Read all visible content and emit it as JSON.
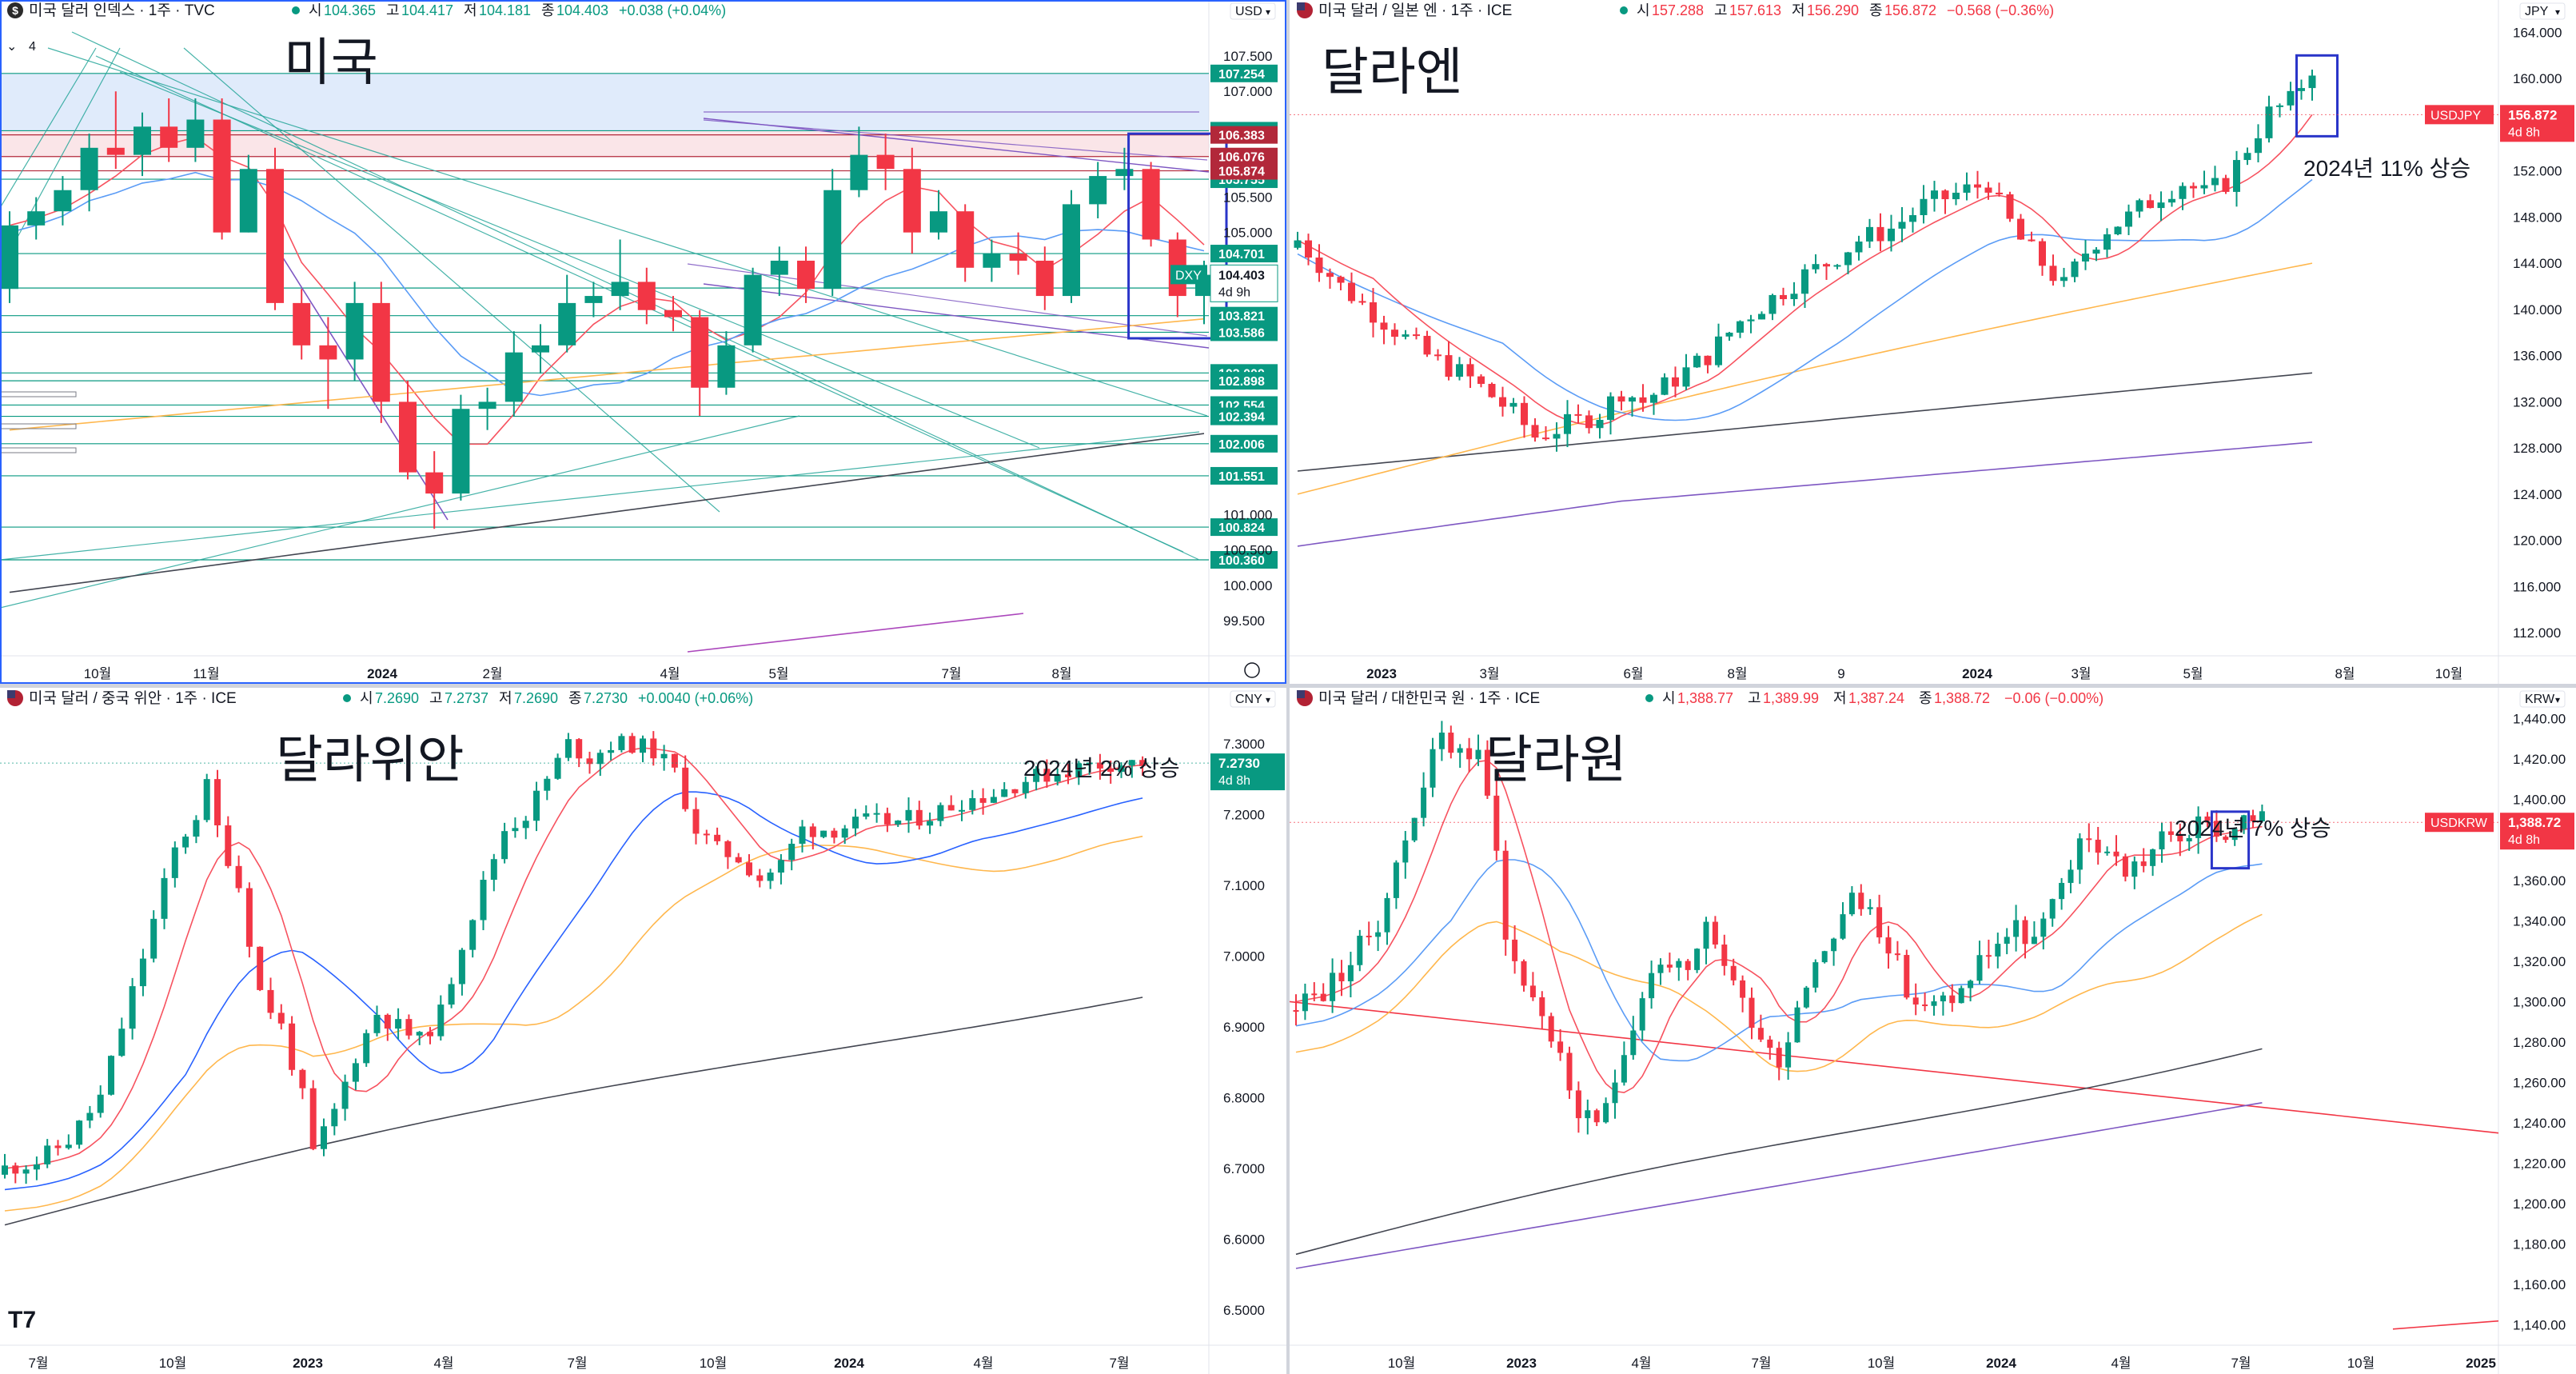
{
  "panels": [
    {
      "id": "dxy",
      "header": {
        "symbol": "미국 달러 인덱스 · 1주 · TVC",
        "icon": "dollar-circle-icon",
        "o_label": "시",
        "o": "104.365",
        "h_label": "고",
        "h": "104.417",
        "l_label": "저",
        "l": "104.181",
        "c_label": "종",
        "c": "104.403",
        "change": "+0.038 (+0.04%)",
        "change_color": "#089981",
        "interval_badge": "4",
        "currency": "USD"
      },
      "big_label": "미국",
      "annotation": "",
      "badge": {
        "symbol": "DXY",
        "price": "104.403",
        "countdown": "4d 9h"
      },
      "level_labels_green": [
        "107.254",
        "106.442",
        "105.755",
        "104.701",
        "104.213",
        "103.821",
        "103.586",
        "103.009",
        "102.898",
        "102.554",
        "102.394",
        "102.006",
        "101.551",
        "100.824",
        "100.360"
      ],
      "level_labels_red": [
        "106.383",
        "106.076",
        "105.874"
      ],
      "price_ticks": [
        "107.500",
        "107.000",
        "105.500",
        "105.000",
        "101.000",
        "100.500",
        "100.000",
        "99.500"
      ],
      "time_ticks": [
        "10월",
        "11월",
        "2024",
        "2월",
        "4월",
        "5월",
        "7월",
        "8월"
      ]
    },
    {
      "id": "usdjpy",
      "header": {
        "symbol": "미국 달러 / 일본 엔 · 1주 · ICE",
        "icon": "us-flag-icon",
        "o_label": "시",
        "o": "157.288",
        "h_label": "고",
        "h": "157.613",
        "l_label": "저",
        "l": "156.290",
        "c_label": "종",
        "c": "156.872",
        "change": "−0.568 (−0.36%)",
        "change_color": "#f23645",
        "currency": "JPY"
      },
      "big_label": "달라엔",
      "annotation": "2024년 11% 상승",
      "badge": {
        "symbol": "USDJPY",
        "price": "156.872",
        "countdown": "4d 8h"
      },
      "price_ticks": [
        "164.000",
        "160.000",
        "156.000",
        "152.000",
        "148.000",
        "144.000",
        "140.000",
        "136.000",
        "132.000",
        "128.000",
        "124.000",
        "120.000",
        "116.000",
        "112.000"
      ],
      "time_ticks": [
        "2023",
        "3월",
        "6월",
        "8월",
        "9",
        "2024",
        "3월",
        "5월",
        "8월",
        "10월"
      ]
    },
    {
      "id": "usdcny",
      "header": {
        "symbol": "미국 달러 / 중국 위안 · 1주 · ICE",
        "icon": "us-flag-icon",
        "o_label": "시",
        "o": "7.2690",
        "h_label": "고",
        "h": "7.2737",
        "l_label": "저",
        "l": "7.2690",
        "c_label": "종",
        "c": "7.2730",
        "change": "+0.0040 (+0.06%)",
        "change_color": "#089981",
        "currency": "CNY"
      },
      "big_label": "달라위안",
      "annotation": "2024년 2% 상승",
      "badge": {
        "symbol": "",
        "price": "7.2730",
        "countdown": "4d 8h"
      },
      "price_ticks": [
        "7.3000",
        "7.2000",
        "7.1000",
        "7.0000",
        "6.9000",
        "6.8000",
        "6.7000",
        "6.6000",
        "6.5000"
      ],
      "time_ticks": [
        "7월",
        "10월",
        "2023",
        "4월",
        "7월",
        "10월",
        "2024",
        "4월",
        "7월"
      ]
    },
    {
      "id": "usdkrw",
      "header": {
        "symbol": "미국 달러 / 대한민국 원 · 1주 · ICE",
        "icon": "us-flag-icon",
        "o_label": "시",
        "o": "1,388.77",
        "h_label": "고",
        "h": "1,389.99",
        "l_label": "저",
        "l": "1,387.24",
        "c_label": "종",
        "c": "1,388.72",
        "change": "−0.06 (−0.00%)",
        "change_color": "#f23645",
        "currency": "KRW"
      },
      "big_label": "달라원",
      "annotation": "2024년 7% 상승",
      "badge": {
        "symbol": "USDKRW",
        "price": "1,388.72",
        "countdown": "4d 8h"
      },
      "price_ticks": [
        "1,440.00",
        "1,420.00",
        "1,400.00",
        "1,380.00",
        "1,360.00",
        "1,340.00",
        "1,320.00",
        "1,300.00",
        "1,280.00",
        "1,260.00",
        "1,240.00",
        "1,220.00",
        "1,200.00",
        "1,180.00",
        "1,160.00",
        "1,140.00"
      ],
      "time_ticks": [
        "10월",
        "2023",
        "4월",
        "7월",
        "10월",
        "2024",
        "4월",
        "7월",
        "10월",
        "2025"
      ]
    }
  ],
  "colors": {
    "up": "#089981",
    "down": "#f23645",
    "ma_red": "#f7525f",
    "ma_blue": "#5b9cf6",
    "ma_blue_dark": "#2962ff",
    "ma_orange": "#ffb74d",
    "ma_black": "#434651",
    "ma_purple": "#7e57c2",
    "box": "#2a35c9"
  },
  "chart_data": [
    {
      "type": "candlestick",
      "symbol": "DXY",
      "title": "미국 달러 인덱스 · 1주 · TVC",
      "x": [
        "2023-09-04",
        "2023-09-11",
        "2023-09-18",
        "2023-09-25",
        "2023-10-02",
        "2023-10-09",
        "2023-10-16",
        "2023-10-23",
        "2023-10-30",
        "2023-11-06",
        "2023-11-13",
        "2023-11-20",
        "2023-11-27",
        "2023-12-04",
        "2023-12-11",
        "2023-12-18",
        "2023-12-25",
        "2024-01-01",
        "2024-01-08",
        "2024-01-15",
        "2024-01-22",
        "2024-01-29",
        "2024-02-05",
        "2024-02-12",
        "2024-02-19",
        "2024-02-26",
        "2024-03-04",
        "2024-03-11",
        "2024-03-18",
        "2024-03-25",
        "2024-04-01",
        "2024-04-08",
        "2024-04-15",
        "2024-04-22",
        "2024-04-29",
        "2024-05-06",
        "2024-05-13",
        "2024-05-20",
        "2024-05-27",
        "2024-06-03",
        "2024-06-10",
        "2024-06-17",
        "2024-06-24",
        "2024-07-01",
        "2024-07-08",
        "2024-07-15"
      ],
      "open": [
        104.2,
        105.1,
        105.3,
        105.6,
        106.2,
        106.1,
        106.5,
        106.2,
        106.6,
        105.0,
        105.9,
        104.0,
        103.4,
        103.2,
        104.0,
        102.6,
        101.6,
        101.3,
        102.5,
        102.6,
        103.3,
        103.4,
        104.0,
        104.1,
        104.3,
        103.9,
        103.8,
        102.8,
        103.4,
        104.4,
        104.6,
        104.2,
        105.6,
        106.1,
        105.9,
        105.0,
        105.3,
        104.5,
        104.7,
        104.6,
        104.1,
        105.4,
        105.8,
        105.9,
        104.9,
        104.1
      ],
      "close": [
        105.1,
        105.3,
        105.6,
        106.2,
        106.1,
        106.5,
        106.2,
        106.6,
        105.0,
        105.9,
        104.0,
        103.4,
        103.2,
        104.0,
        102.6,
        101.6,
        101.3,
        102.5,
        102.6,
        103.3,
        103.4,
        104.0,
        104.1,
        104.3,
        103.9,
        103.8,
        102.8,
        103.4,
        104.4,
        104.6,
        104.2,
        105.6,
        106.1,
        105.9,
        105.0,
        105.3,
        104.5,
        104.7,
        104.6,
        104.1,
        105.4,
        105.8,
        105.9,
        104.9,
        104.1,
        104.4
      ],
      "high": [
        105.3,
        105.5,
        105.8,
        106.4,
        107.0,
        106.7,
        106.9,
        106.9,
        106.9,
        106.1,
        106.2,
        104.2,
        103.8,
        104.3,
        104.3,
        102.9,
        101.9,
        102.7,
        102.8,
        103.6,
        103.7,
        104.4,
        104.3,
        104.9,
        104.5,
        104.1,
        103.9,
        103.6,
        104.5,
        104.8,
        104.8,
        105.9,
        106.5,
        106.4,
        106.2,
        105.6,
        105.4,
        104.9,
        105.0,
        104.8,
        105.6,
        106.0,
        106.2,
        106.0,
        105.0,
        104.6
      ],
      "low": [
        104.0,
        104.9,
        105.1,
        105.3,
        105.9,
        105.8,
        106.0,
        106.0,
        104.9,
        105.0,
        103.9,
        103.2,
        102.5,
        102.9,
        102.3,
        101.5,
        100.8,
        101.2,
        102.2,
        102.4,
        103.0,
        103.3,
        103.8,
        103.9,
        103.7,
        103.6,
        102.4,
        102.7,
        103.3,
        104.1,
        104.0,
        104.1,
        105.5,
        105.6,
        104.7,
        104.9,
        104.3,
        104.3,
        104.4,
        103.9,
        104.0,
        105.2,
        105.6,
        104.8,
        103.8,
        103.7
      ],
      "ylim": [
        99.0,
        108.0
      ],
      "levels_green": [
        107.254,
        106.442,
        105.755,
        104.701,
        104.213,
        103.821,
        103.586,
        103.009,
        102.898,
        102.554,
        102.394,
        102.006,
        101.551,
        100.824,
        100.36
      ],
      "levels_red": [
        106.383,
        106.076,
        105.874
      ],
      "last": 104.403,
      "highlight_box": {
        "x_from": "2024-07-01",
        "x_to": "2024-07-15",
        "y_from": 103.5,
        "y_to": 106.4
      }
    },
    {
      "type": "candlestick",
      "symbol": "USDJPY",
      "title": "미국 달러 / 일본 엔 · 1주 · ICE",
      "x_range": [
        "2022-09-26",
        "2024-07-15"
      ],
      "weeks": 95,
      "close_path": [
        [
          0,
          146
        ],
        [
          4,
          142
        ],
        [
          8,
          139
        ],
        [
          12,
          136
        ],
        [
          16,
          134
        ],
        [
          20,
          131
        ],
        [
          22,
          129
        ],
        [
          25,
          130
        ],
        [
          28,
          131
        ],
        [
          30,
          133
        ],
        [
          32,
          132
        ],
        [
          35,
          134
        ],
        [
          38,
          136
        ],
        [
          41,
          139
        ],
        [
          44,
          141
        ],
        [
          47,
          143
        ],
        [
          49,
          144
        ],
        [
          52,
          146
        ],
        [
          55,
          147
        ],
        [
          58,
          149
        ],
        [
          61,
          150
        ],
        [
          64,
          151
        ],
        [
          65,
          149
        ],
        [
          67,
          146
        ],
        [
          69,
          144
        ],
        [
          71,
          142
        ],
        [
          73,
          145
        ],
        [
          75,
          147
        ],
        [
          77,
          148
        ],
        [
          80,
          150
        ],
        [
          82,
          151
        ],
        [
          84,
          150
        ],
        [
          86,
          151
        ],
        [
          88,
          154
        ],
        [
          90,
          157
        ],
        [
          92,
          158
        ],
        [
          94,
          161
        ],
        [
          95,
          157
        ],
        [
          96,
          156.872
        ]
      ],
      "ma_red_end": 153.5,
      "ma_blue_end": 151.5,
      "ma_orange_end": 144.0,
      "ma_black_end": 134.5,
      "ma_purple_end": 128.5,
      "ylim": [
        110.0,
        165.0
      ],
      "last": 156.872,
      "highlight_box": {
        "x_from": 93,
        "x_to": 95,
        "y_from": 155.0,
        "y_to": 162.0
      },
      "annotation": "2024년 11% 상승"
    },
    {
      "type": "candlestick",
      "symbol": "USDCNY",
      "title": "미국 달러 / 중국 위안 · 1주 · ICE",
      "x_range": [
        "2022-06-27",
        "2024-07-15"
      ],
      "weeks": 108,
      "close_path": [
        [
          0,
          6.7
        ],
        [
          3,
          6.71
        ],
        [
          6,
          6.74
        ],
        [
          9,
          6.8
        ],
        [
          12,
          6.95
        ],
        [
          14,
          7.05
        ],
        [
          16,
          7.15
        ],
        [
          18,
          7.2
        ],
        [
          19,
          7.24
        ],
        [
          20,
          7.18
        ],
        [
          22,
          7.1
        ],
        [
          24,
          6.95
        ],
        [
          26,
          6.9
        ],
        [
          28,
          6.8
        ],
        [
          29,
          6.72
        ],
        [
          31,
          6.78
        ],
        [
          33,
          6.86
        ],
        [
          35,
          6.92
        ],
        [
          37,
          6.9
        ],
        [
          39,
          6.88
        ],
        [
          41,
          6.92
        ],
        [
          43,
          7.02
        ],
        [
          45,
          7.1
        ],
        [
          47,
          7.18
        ],
        [
          49,
          7.2
        ],
        [
          51,
          7.25
        ],
        [
          53,
          7.3
        ],
        [
          55,
          7.28
        ],
        [
          57,
          7.3
        ],
        [
          59,
          7.3
        ],
        [
          61,
          7.29
        ],
        [
          63,
          7.26
        ],
        [
          65,
          7.18
        ],
        [
          67,
          7.15
        ],
        [
          69,
          7.14
        ],
        [
          71,
          7.11
        ],
        [
          73,
          7.13
        ],
        [
          75,
          7.18
        ],
        [
          78,
          7.18
        ],
        [
          81,
          7.19
        ],
        [
          84,
          7.19
        ],
        [
          87,
          7.2
        ],
        [
          90,
          7.22
        ],
        [
          93,
          7.23
        ],
        [
          96,
          7.25
        ],
        [
          99,
          7.26
        ],
        [
          102,
          7.27
        ],
        [
          104,
          7.273
        ]
      ],
      "ma_red_end": 7.25,
      "ma_blue_end": 7.2,
      "ma_orange_end": 7.1,
      "ma_black_end": 6.96,
      "ylim": [
        6.45,
        7.35
      ],
      "last": 7.273,
      "annotation": "2024년 2% 상승"
    },
    {
      "type": "candlestick",
      "symbol": "USDKRW",
      "title": "미국 달러 / 대한민국 원 · 1주 · ICE",
      "x_range": [
        "2022-07-04",
        "2024-07-15"
      ],
      "weeks": 107,
      "close_path": [
        [
          0,
          1300
        ],
        [
          3,
          1305
        ],
        [
          6,
          1320
        ],
        [
          9,
          1340
        ],
        [
          12,
          1380
        ],
        [
          14,
          1410
        ],
        [
          16,
          1430
        ],
        [
          18,
          1425
        ],
        [
          20,
          1420
        ],
        [
          22,
          1380
        ],
        [
          23,
          1330
        ],
        [
          25,
          1310
        ],
        [
          27,
          1295
        ],
        [
          29,
          1270
        ],
        [
          31,
          1245
        ],
        [
          33,
          1235
        ],
        [
          35,
          1265
        ],
        [
          37,
          1290
        ],
        [
          39,
          1315
        ],
        [
          41,
          1320
        ],
        [
          43,
          1310
        ],
        [
          45,
          1335
        ],
        [
          47,
          1320
        ],
        [
          49,
          1300
        ],
        [
          51,
          1285
        ],
        [
          53,
          1270
        ],
        [
          55,
          1300
        ],
        [
          57,
          1320
        ],
        [
          59,
          1335
        ],
        [
          61,
          1350
        ],
        [
          63,
          1345
        ],
        [
          65,
          1330
        ],
        [
          67,
          1305
        ],
        [
          69,
          1295
        ],
        [
          71,
          1300
        ],
        [
          73,
          1305
        ],
        [
          75,
          1320
        ],
        [
          77,
          1330
        ],
        [
          79,
          1335
        ],
        [
          81,
          1330
        ],
        [
          83,
          1345
        ],
        [
          85,
          1370
        ],
        [
          87,
          1380
        ],
        [
          89,
          1375
        ],
        [
          91,
          1365
        ],
        [
          93,
          1370
        ],
        [
          95,
          1380
        ],
        [
          97,
          1382
        ],
        [
          99,
          1386
        ],
        [
          101,
          1386
        ],
        [
          102,
          1380
        ],
        [
          103,
          1388.72
        ]
      ],
      "ma_red_end": 1370,
      "ma_blue_end": 1347,
      "ma_orange_end": 1320,
      "ma_black_end": 1280,
      "ma_purple_end": 1250,
      "trend_red_start": 1300,
      "trend_red_end": 1235,
      "ylim": [
        1130,
        1445
      ],
      "last": 1388.72,
      "highlight_box": {
        "x_from": 101,
        "x_to": 104,
        "y_from": 1366,
        "y_to": 1394
      },
      "annotation": "2024년 7% 상승"
    }
  ]
}
